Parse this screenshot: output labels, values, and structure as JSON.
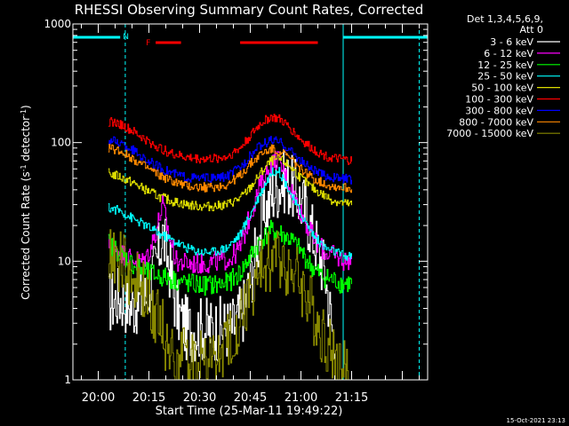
{
  "chart_data": {
    "type": "line",
    "title": "RHESSI Observing Summary Count Rates, Corrected",
    "xlabel": "Start Time (25-Mar-11 19:49:22)",
    "ylabel_main": "Corrected Count Rate (s",
    "ylabel_sup1": "-1",
    "ylabel_mid": " detector",
    "ylabel_sup2": "-1",
    "ylabel_end": ")",
    "yscale": "log",
    "ylim": [
      1,
      1000
    ],
    "xlim_minutes": [
      -7.5,
      97.5
    ],
    "x_ticks": [
      {
        "minute": 0,
        "label": "20:00"
      },
      {
        "minute": 15,
        "label": "20:15"
      },
      {
        "minute": 30,
        "label": "20:30"
      },
      {
        "minute": 45,
        "label": "20:45"
      },
      {
        "minute": 60,
        "label": "21:00"
      },
      {
        "minute": 75,
        "label": "21:15"
      }
    ],
    "y_ticks": [
      {
        "value": 1,
        "label": "1"
      },
      {
        "value": 10,
        "label": "10"
      },
      {
        "value": 100,
        "label": "100"
      },
      {
        "value": 1000,
        "label": "1000"
      }
    ],
    "legend_header": [
      "Det 1,3,4,5,6,9,",
      "Att 0"
    ],
    "legend_position": "right",
    "footer_timestamp": "15-Oct-2021 23:13",
    "flags": [
      {
        "label": "N",
        "color": "#00ffff",
        "bars": [
          [
            -7.5,
            6.5
          ],
          [
            72.5,
            97.5
          ]
        ]
      },
      {
        "label": "F",
        "color": "#ff0000",
        "bars": [
          [
            17,
            24.5
          ],
          [
            42,
            65
          ]
        ]
      }
    ],
    "flag_lines": [
      {
        "minute": -7.5,
        "style": "solid",
        "color": "#00ffff"
      },
      {
        "minute": 8,
        "style": "dashed",
        "color": "#00ffff"
      },
      {
        "minute": 72.5,
        "style": "solid",
        "color": "#00ffff"
      },
      {
        "minute": 95,
        "style": "dashed",
        "color": "#00ffff"
      }
    ],
    "series": [
      {
        "name": "3 - 6 keV",
        "color": "#ffffff",
        "points": [
          [
            3,
            4.5
          ],
          [
            6,
            5
          ],
          [
            10,
            4.2
          ],
          [
            14,
            5
          ],
          [
            17,
            9
          ],
          [
            19,
            17
          ],
          [
            21,
            9
          ],
          [
            23,
            4
          ],
          [
            26,
            2.7
          ],
          [
            30,
            2.7
          ],
          [
            35,
            2.7
          ],
          [
            40,
            2.8
          ],
          [
            43,
            4
          ],
          [
            46,
            10
          ],
          [
            49,
            25
          ],
          [
            52,
            40
          ],
          [
            55,
            48
          ],
          [
            58,
            40
          ],
          [
            61,
            28
          ],
          [
            64,
            15
          ],
          [
            67,
            8
          ],
          [
            69,
            3
          ],
          [
            70,
            1.8
          ]
        ]
      },
      {
        "name": "6 - 12 keV",
        "color": "#ff00ff",
        "points": [
          [
            3,
            14
          ],
          [
            6,
            12
          ],
          [
            10,
            10.5
          ],
          [
            13,
            10
          ],
          [
            15,
            12
          ],
          [
            17,
            18
          ],
          [
            19,
            30
          ],
          [
            21,
            16
          ],
          [
            23,
            10
          ],
          [
            27,
            9.5
          ],
          [
            31,
            9.5
          ],
          [
            35,
            10
          ],
          [
            39,
            10.5
          ],
          [
            42,
            13
          ],
          [
            45,
            25
          ],
          [
            48,
            45
          ],
          [
            51,
            65
          ],
          [
            53,
            75
          ],
          [
            55,
            55
          ],
          [
            58,
            35
          ],
          [
            61,
            22
          ],
          [
            64,
            15
          ],
          [
            67,
            12
          ],
          [
            70,
            11
          ],
          [
            73,
            10
          ],
          [
            75,
            10.5
          ]
        ]
      },
      {
        "name": "12 - 25 keV",
        "color": "#00ff00",
        "points": [
          [
            3,
            14
          ],
          [
            6,
            12
          ],
          [
            10,
            9.5
          ],
          [
            14,
            8
          ],
          [
            18,
            7.5
          ],
          [
            22,
            7
          ],
          [
            26,
            6.5
          ],
          [
            30,
            6.3
          ],
          [
            34,
            6.3
          ],
          [
            38,
            6.5
          ],
          [
            42,
            8
          ],
          [
            45,
            11
          ],
          [
            48,
            15
          ],
          [
            51,
            18
          ],
          [
            54,
            17
          ],
          [
            57,
            15
          ],
          [
            60,
            12
          ],
          [
            63,
            9
          ],
          [
            66,
            7.5
          ],
          [
            69,
            7
          ],
          [
            72,
            6.5
          ],
          [
            75,
            6.5
          ]
        ]
      },
      {
        "name": "25 - 50 keV",
        "color": "#00ffff",
        "points": [
          [
            3,
            28
          ],
          [
            6,
            27
          ],
          [
            10,
            23
          ],
          [
            14,
            20
          ],
          [
            18,
            17
          ],
          [
            22,
            15
          ],
          [
            26,
            13
          ],
          [
            30,
            12
          ],
          [
            34,
            12
          ],
          [
            38,
            13
          ],
          [
            42,
            17
          ],
          [
            45,
            25
          ],
          [
            48,
            38
          ],
          [
            51,
            55
          ],
          [
            53,
            60
          ],
          [
            55,
            48
          ],
          [
            58,
            32
          ],
          [
            61,
            22
          ],
          [
            64,
            16
          ],
          [
            67,
            13
          ],
          [
            70,
            12
          ],
          [
            73,
            11
          ],
          [
            75,
            11
          ]
        ]
      },
      {
        "name": "50 - 100 keV",
        "color": "#dddd00",
        "points": [
          [
            3,
            55
          ],
          [
            6,
            52
          ],
          [
            10,
            46
          ],
          [
            14,
            40
          ],
          [
            18,
            35
          ],
          [
            22,
            32
          ],
          [
            26,
            30
          ],
          [
            30,
            29
          ],
          [
            34,
            29
          ],
          [
            38,
            30
          ],
          [
            42,
            34
          ],
          [
            45,
            42
          ],
          [
            48,
            55
          ],
          [
            51,
            70
          ],
          [
            54,
            72
          ],
          [
            57,
            62
          ],
          [
            60,
            50
          ],
          [
            63,
            42
          ],
          [
            66,
            37
          ],
          [
            69,
            33
          ],
          [
            72,
            31
          ],
          [
            75,
            30
          ]
        ]
      },
      {
        "name": "100 - 300 keV",
        "color": "#ff0000",
        "points": [
          [
            3,
            150
          ],
          [
            6,
            145
          ],
          [
            10,
            125
          ],
          [
            14,
            105
          ],
          [
            18,
            90
          ],
          [
            22,
            80
          ],
          [
            26,
            75
          ],
          [
            30,
            73
          ],
          [
            34,
            73
          ],
          [
            38,
            76
          ],
          [
            42,
            90
          ],
          [
            45,
            115
          ],
          [
            48,
            145
          ],
          [
            51,
            165
          ],
          [
            54,
            155
          ],
          [
            57,
            130
          ],
          [
            60,
            105
          ],
          [
            63,
            90
          ],
          [
            66,
            80
          ],
          [
            69,
            74
          ],
          [
            72,
            72
          ],
          [
            75,
            70
          ]
        ]
      },
      {
        "name": "300 - 800 keV",
        "color": "#0000ff",
        "points": [
          [
            3,
            105
          ],
          [
            6,
            100
          ],
          [
            10,
            87
          ],
          [
            14,
            72
          ],
          [
            18,
            62
          ],
          [
            22,
            55
          ],
          [
            26,
            51
          ],
          [
            30,
            50
          ],
          [
            34,
            50
          ],
          [
            38,
            52
          ],
          [
            42,
            62
          ],
          [
            45,
            78
          ],
          [
            48,
            95
          ],
          [
            51,
            105
          ],
          [
            54,
            100
          ],
          [
            57,
            85
          ],
          [
            60,
            70
          ],
          [
            63,
            60
          ],
          [
            66,
            54
          ],
          [
            69,
            51
          ],
          [
            72,
            50
          ],
          [
            75,
            49
          ]
        ]
      },
      {
        "name": "800 - 7000 keV",
        "color": "#ff8800",
        "points": [
          [
            3,
            90
          ],
          [
            6,
            86
          ],
          [
            10,
            74
          ],
          [
            14,
            62
          ],
          [
            18,
            53
          ],
          [
            22,
            47
          ],
          [
            26,
            43
          ],
          [
            30,
            42
          ],
          [
            34,
            42
          ],
          [
            38,
            44
          ],
          [
            42,
            53
          ],
          [
            45,
            66
          ],
          [
            48,
            80
          ],
          [
            51,
            88
          ],
          [
            54,
            84
          ],
          [
            57,
            72
          ],
          [
            60,
            60
          ],
          [
            63,
            51
          ],
          [
            66,
            46
          ],
          [
            69,
            43
          ],
          [
            72,
            42
          ],
          [
            75,
            41
          ]
        ]
      },
      {
        "name": "7000 - 15000 keV",
        "color": "#888800",
        "points": [
          [
            3,
            12
          ],
          [
            6,
            10
          ],
          [
            10,
            7
          ],
          [
            14,
            5
          ],
          [
            18,
            3.5
          ],
          [
            20,
            2
          ],
          [
            24,
            1.5
          ],
          [
            28,
            1.5
          ],
          [
            32,
            1.5
          ],
          [
            36,
            1.5
          ],
          [
            40,
            2.5
          ],
          [
            43,
            4
          ],
          [
            46,
            6
          ],
          [
            49,
            9
          ],
          [
            52,
            11
          ],
          [
            55,
            10
          ],
          [
            58,
            8
          ],
          [
            61,
            5.5
          ],
          [
            64,
            3.5
          ],
          [
            67,
            2.2
          ],
          [
            70,
            1.5
          ],
          [
            72,
            1.2
          ],
          [
            74,
            1.1
          ]
        ]
      }
    ]
  }
}
